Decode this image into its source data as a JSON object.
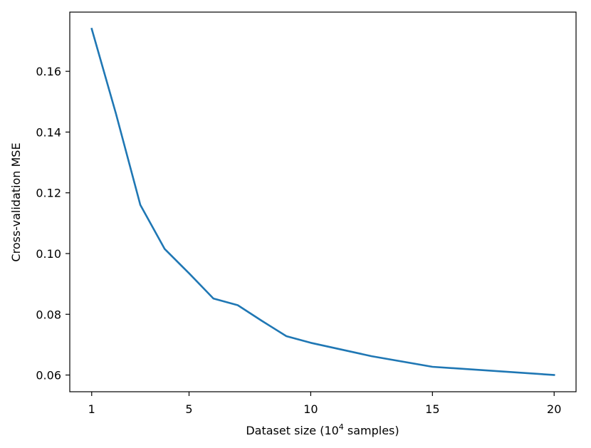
{
  "chart_data": {
    "type": "line",
    "title": "",
    "xlabel": "Dataset size (10",
    "xlabel_superscript": "4",
    "xlabel_suffix": " samples)",
    "ylabel": "Cross-validation MSE",
    "xlim": [
      0.1,
      20.9
    ],
    "ylim": [
      0.0545,
      0.1795
    ],
    "xticks": [
      1,
      5,
      10,
      15,
      20
    ],
    "xtick_labels": [
      "1",
      "5",
      "10",
      "15",
      "20"
    ],
    "yticks": [
      0.06,
      0.08,
      0.1,
      0.12,
      0.14,
      0.16
    ],
    "ytick_labels": [
      "0.06",
      "0.08",
      "0.10",
      "0.12",
      "0.14",
      "0.16"
    ],
    "grid": false,
    "series": [
      {
        "color": "#1f77b4",
        "x": [
          1,
          2,
          3,
          4,
          5,
          6,
          7,
          8,
          9,
          10,
          12.5,
          15,
          20
        ],
        "y": [
          0.174,
          0.146,
          0.116,
          0.1015,
          0.0935,
          0.0852,
          0.083,
          0.0778,
          0.0728,
          0.0706,
          0.0662,
          0.0627,
          0.06
        ]
      }
    ]
  }
}
